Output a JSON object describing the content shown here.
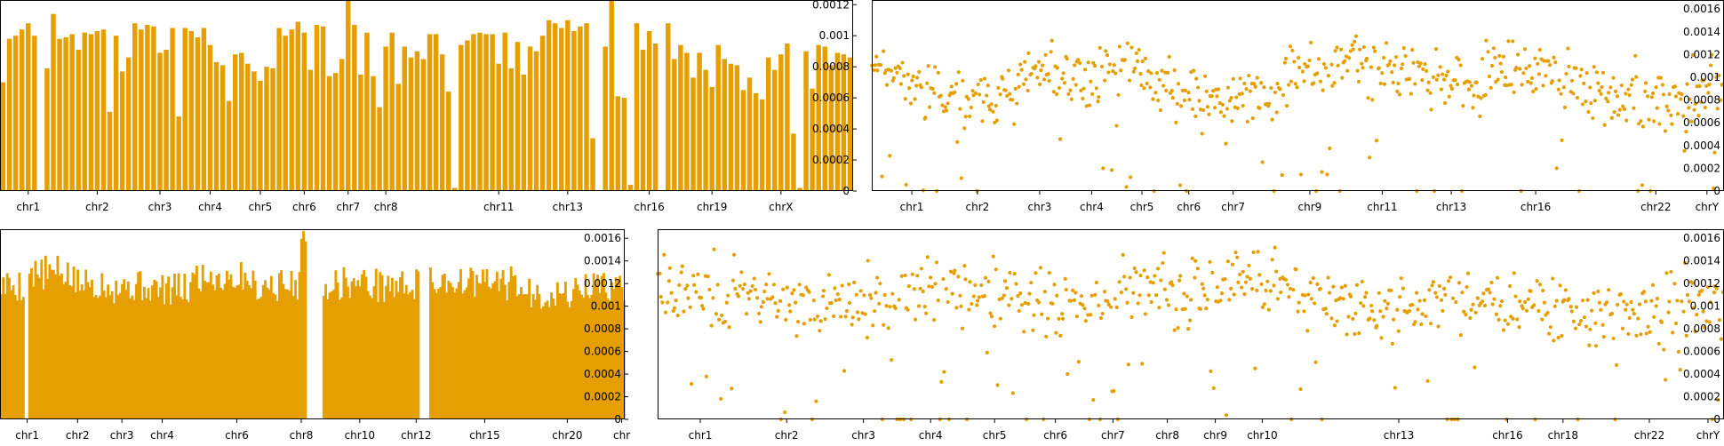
{
  "colors": {
    "accent": "#e69f00",
    "axis": "#000000",
    "background": "#ffffff"
  },
  "chart_data": [
    {
      "type": "bar",
      "ylim": [
        0,
        0.00123
      ],
      "yticks": [
        "0",
        "0.0002",
        "0.0004",
        "0.0006",
        "0.0008",
        "0.001",
        "0.0012"
      ],
      "xlabels": [
        "chr1",
        "chr2",
        "chr3",
        "chr4",
        "chr5",
        "chr6",
        "chr7",
        "chr8",
        "chr11",
        "chr13",
        "chr16",
        "chr19",
        "chrX"
      ],
      "label_bins": [
        4,
        15,
        25,
        33,
        41,
        48,
        55,
        61,
        79,
        90,
        103,
        113,
        124
      ],
      "values": [
        0.0007,
        0.00098,
        0.001,
        0.00104,
        0.00108,
        0.001,
        0,
        0.00079,
        0.00114,
        0.00098,
        0.00099,
        0.00101,
        0.00091,
        0.00102,
        0.00101,
        0.00103,
        0.00104,
        0.00051,
        0.001,
        0.00077,
        0.00086,
        0.00108,
        0.00104,
        0.00107,
        0.00106,
        0.00089,
        0.00091,
        0.00105,
        0.00048,
        0.00105,
        0.00103,
        0.00099,
        0.00105,
        0.00094,
        0.00083,
        0.00081,
        0.00058,
        0.00088,
        0.00089,
        0.00082,
        0.00077,
        0.00071,
        0.0008,
        0.00079,
        0.00105,
        0.001,
        0.00104,
        0.00109,
        0.00102,
        0.00078,
        0.00107,
        0.00106,
        0.00074,
        0.00076,
        0.00085,
        0.00126,
        0.00107,
        0.00075,
        0.00102,
        0.00074,
        0.00054,
        0.00093,
        0.00102,
        0.00069,
        0.00093,
        0.00086,
        0.0009,
        0.00085,
        0.00101,
        0.00101,
        0.00088,
        0.00064,
        2e-05,
        0.00094,
        0.00097,
        0.00101,
        0.00102,
        0.00101,
        0.00101,
        0.00082,
        0.00102,
        0.00079,
        0.00096,
        0.00075,
        0.00093,
        0.0009,
        0.001,
        0.0011,
        0.00108,
        0.00105,
        0.0011,
        0.00103,
        0.00106,
        0.00108,
        0.00034,
        0,
        0.00093,
        0.00126,
        0.00061,
        0.0006,
        4e-05,
        0.00108,
        0.00091,
        0.00103,
        0.00095,
        0,
        0.00108,
        0.00085,
        0.00094,
        0.00089,
        0.00073,
        0.00089,
        0.00078,
        0.00067,
        0.00094,
        0.00085,
        0.00082,
        0.00081,
        0.00065,
        0.00073,
        0.00063,
        0.00059,
        0.00086,
        0.00078,
        0.00088,
        0.00095,
        0.00037,
        2e-05,
        0.0009,
        0.00066,
        0.00094,
        0.00093,
        0.00081,
        0.00089,
        0.00088,
        0.00086
      ]
    },
    {
      "type": "scatter",
      "ylim": [
        0,
        0.00168
      ],
      "yticks": [
        "0",
        "0.0002",
        "0.0004",
        "0.0006",
        "0.0008",
        "0.001",
        "0.0012",
        "0.0014",
        "0.0016"
      ],
      "xlabels": [
        "chr1",
        "chr2",
        "chr3",
        "chr4",
        "chr5",
        "chr6",
        "chr7",
        "chr9",
        "chr11",
        "chr13",
        "chr16",
        "chr22",
        "chrY"
      ],
      "label_positions": [
        0.047,
        0.124,
        0.197,
        0.258,
        0.317,
        0.372,
        0.424,
        0.514,
        0.599,
        0.68,
        0.779,
        0.92,
        0.98
      ],
      "n_points": 620,
      "seed": 11,
      "base": 0.00102,
      "spread": 0.00022,
      "zero_frac": 0.03,
      "low_frac": 0.05,
      "wave": [
        0.0012,
        0.00092,
        0.00075,
        0.00085,
        0.00105,
        0.00095,
        0.00115,
        0.0009,
        0.00082,
        0.0008,
        0.00102,
        0.0011,
        0.0011,
        0.00095,
        0.0009,
        0.0011,
        0.001,
        0.00085,
        0.0008,
        0.0008,
        0.00095
      ]
    },
    {
      "type": "bar",
      "ylim": [
        0,
        0.00168
      ],
      "yticks": [
        "0",
        "0.0002",
        "0.0004",
        "0.0006",
        "0.0008",
        "0.001",
        "0.0012",
        "0.0014",
        "0.0016"
      ],
      "xlabels": [
        "chr1",
        "chr2",
        "chr3",
        "chr4",
        "chr6",
        "chr8",
        "chr10",
        "chr12",
        "chr15",
        "chr20",
        "chr"
      ],
      "label_bins": [
        13,
        38,
        60,
        80,
        117,
        149,
        178,
        206,
        240,
        281,
        308
      ],
      "n_bins": 310,
      "seed": 5,
      "blocks": [
        [
          0,
          12,
          0.00126
        ],
        [
          12,
          14,
          0
        ],
        [
          14,
          35,
          0.00137
        ],
        [
          35,
          55,
          0.00128
        ],
        [
          55,
          75,
          0.00125
        ],
        [
          75,
          95,
          0.00122
        ],
        [
          95,
          125,
          0.00134
        ],
        [
          125,
          148,
          0.00126
        ],
        [
          148,
          152,
          0.00158
        ],
        [
          152,
          160,
          0
        ],
        [
          160,
          185,
          0.00128
        ],
        [
          185,
          208,
          0.00126
        ],
        [
          208,
          213,
          0
        ],
        [
          213,
          232,
          0.0013
        ],
        [
          232,
          258,
          0.00128
        ],
        [
          258,
          286,
          0.00118
        ],
        [
          286,
          310,
          0.00125
        ]
      ]
    },
    {
      "type": "scatter",
      "ylim": [
        0,
        0.00168
      ],
      "yticks": [
        "0",
        "0.0002",
        "0.0004",
        "0.0006",
        "0.0008",
        "0.001",
        "0.0012",
        "0.0014",
        "0.0016"
      ],
      "xlabels": [
        "chr1",
        "chr2",
        "chr3",
        "chr4",
        "chr5",
        "chr6",
        "chr7",
        "chr8",
        "chr9",
        "chr10",
        "chr13",
        "chr16",
        "chr18",
        "chr22",
        "chrY"
      ],
      "label_positions": [
        0.04,
        0.121,
        0.193,
        0.256,
        0.316,
        0.373,
        0.427,
        0.478,
        0.523,
        0.567,
        0.695,
        0.797,
        0.849,
        0.93,
        0.985
      ],
      "n_points": 700,
      "seed": 23,
      "base": 0.00112,
      "spread": 0.00024,
      "zero_frac": 0.03,
      "low_frac": 0.05,
      "wave": [
        0.0012,
        0.0011,
        0.00112,
        0.00098,
        0.00105,
        0.00112,
        0.0011,
        0.00105,
        0.001,
        0.00118,
        0.00108,
        0.00125,
        0.00115,
        0.00098,
        0.00095,
        0.0011,
        0.00105,
        0.00098,
        0.00095,
        0.001,
        0.00105
      ]
    }
  ]
}
